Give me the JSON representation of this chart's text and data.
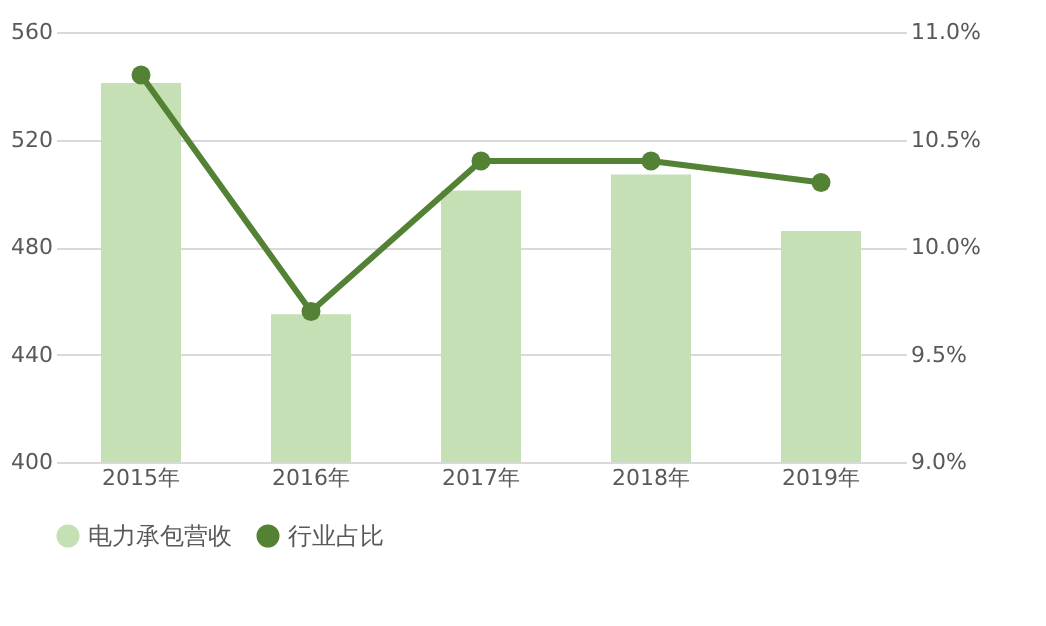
{
  "chart_data": {
    "type": "bar",
    "categories": [
      "2015年",
      "2016年",
      "2017年",
      "2018年",
      "2019年"
    ],
    "series": [
      {
        "name": "电力承包营收",
        "color": "#c5e0b4",
        "values": [
          541,
          455,
          501,
          507,
          486
        ]
      },
      {
        "name": "行业占比",
        "type": "line",
        "axis": "y2",
        "color": "#548235",
        "marker": "circle",
        "line_style": "solid",
        "values": [
          10.8,
          9.7,
          10.4,
          10.4,
          10.3
        ]
      }
    ],
    "ylim": [
      400,
      560
    ],
    "yticks": [
      400,
      440,
      480,
      520,
      560
    ],
    "y2lim": [
      9.0,
      11.0
    ],
    "y2ticks": [
      {
        "value": 9.0,
        "label": "9.0%"
      },
      {
        "value": 9.5,
        "label": "9.5%"
      },
      {
        "value": 10.0,
        "label": "10.0%"
      },
      {
        "value": 10.5,
        "label": "10.5%"
      },
      {
        "value": 11.0,
        "label": "11.0%"
      }
    ],
    "grid": "y",
    "legend": "bottom"
  }
}
